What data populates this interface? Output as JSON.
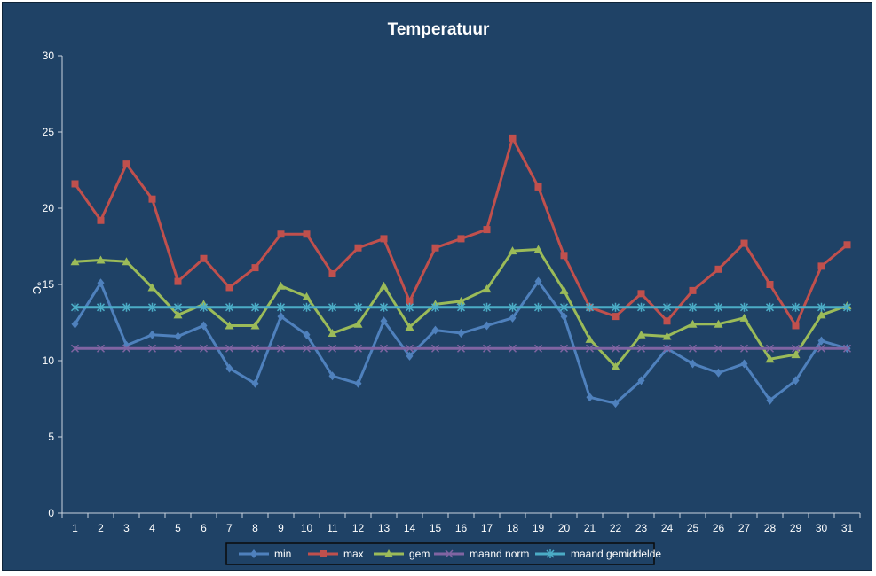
{
  "chart_data": {
    "type": "line",
    "title": "Temperatuur",
    "xlabel": "",
    "ylabel": "°C",
    "ylim": [
      0,
      30
    ],
    "yticks": [
      0,
      5,
      10,
      15,
      20,
      25,
      30
    ],
    "categories": [
      "1",
      "2",
      "3",
      "4",
      "5",
      "6",
      "7",
      "8",
      "9",
      "10",
      "11",
      "12",
      "13",
      "14",
      "15",
      "16",
      "17",
      "18",
      "19",
      "20",
      "21",
      "22",
      "23",
      "24",
      "25",
      "26",
      "27",
      "28",
      "29",
      "30",
      "31"
    ],
    "grid": false,
    "legend_position": "bottom",
    "series": [
      {
        "name": "min",
        "color": "#4f81bd",
        "marker": "diamond",
        "values": [
          12.4,
          15.1,
          11.0,
          11.7,
          11.6,
          12.3,
          9.5,
          8.5,
          12.9,
          11.7,
          9.0,
          8.5,
          12.6,
          10.3,
          12.0,
          11.8,
          12.3,
          12.8,
          15.2,
          12.9,
          7.6,
          7.2,
          8.7,
          10.8,
          9.8,
          9.2,
          9.8,
          7.4,
          8.7,
          11.3,
          10.8
        ]
      },
      {
        "name": "max",
        "color": "#c0504d",
        "marker": "square",
        "values": [
          21.6,
          19.2,
          22.9,
          20.6,
          15.2,
          16.7,
          14.8,
          16.1,
          18.3,
          18.3,
          15.7,
          17.4,
          18.0,
          13.9,
          17.4,
          18.0,
          18.6,
          24.6,
          21.4,
          16.9,
          13.5,
          12.9,
          14.4,
          12.6,
          14.6,
          16.0,
          17.7,
          15.0,
          12.3,
          16.2,
          17.6
        ]
      },
      {
        "name": "gem",
        "color": "#9bbb59",
        "marker": "triangle",
        "values": [
          16.5,
          16.6,
          16.5,
          14.8,
          13.0,
          13.7,
          12.3,
          12.3,
          14.9,
          14.2,
          11.8,
          12.4,
          14.9,
          12.2,
          13.7,
          13.9,
          14.7,
          17.2,
          17.3,
          14.6,
          11.4,
          9.6,
          11.7,
          11.6,
          12.4,
          12.4,
          12.8,
          10.1,
          10.4,
          13.0,
          13.6
        ]
      },
      {
        "name": "maand norm",
        "color": "#8064a2",
        "marker": "x",
        "values": [
          10.8,
          10.8,
          10.8,
          10.8,
          10.8,
          10.8,
          10.8,
          10.8,
          10.8,
          10.8,
          10.8,
          10.8,
          10.8,
          10.8,
          10.8,
          10.8,
          10.8,
          10.8,
          10.8,
          10.8,
          10.8,
          10.8,
          10.8,
          10.8,
          10.8,
          10.8,
          10.8,
          10.8,
          10.8,
          10.8,
          10.8
        ]
      },
      {
        "name": "maand gemiddelde",
        "color": "#4bacc6",
        "marker": "star",
        "values": [
          13.5,
          13.5,
          13.5,
          13.5,
          13.5,
          13.5,
          13.5,
          13.5,
          13.5,
          13.5,
          13.5,
          13.5,
          13.5,
          13.5,
          13.5,
          13.5,
          13.5,
          13.5,
          13.5,
          13.5,
          13.5,
          13.5,
          13.5,
          13.5,
          13.5,
          13.5,
          13.5,
          13.5,
          13.5,
          13.5,
          13.5
        ]
      }
    ]
  }
}
